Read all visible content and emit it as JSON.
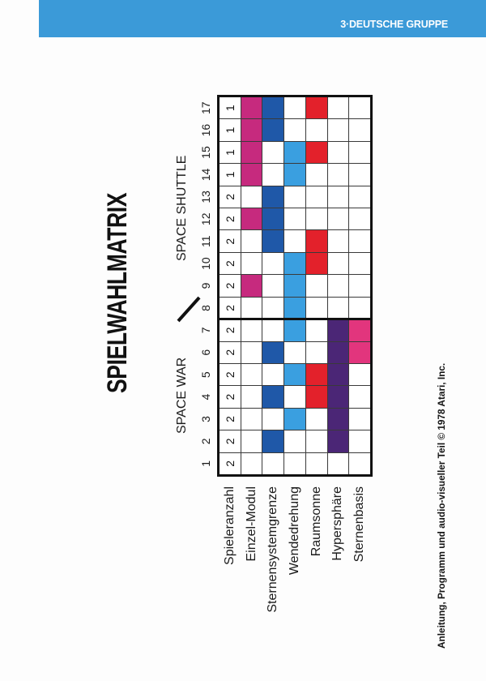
{
  "header": {
    "label": "3·DEUTSCHE GRUPPE",
    "band_color": "#3b9ad8"
  },
  "title": "SPIELWAHLMATRIX",
  "groups": {
    "space_war": "SPACE WAR",
    "space_shuttle": "SPACE SHUTTLE"
  },
  "matrix": {
    "columns": [
      "1",
      "2",
      "3",
      "4",
      "5",
      "6",
      "7",
      "8",
      "9",
      "10",
      "11",
      "12",
      "13",
      "14",
      "15",
      "16",
      "17"
    ],
    "rows": [
      {
        "label": "Spieleranzahl",
        "values": [
          "2",
          "2",
          "2",
          "2",
          "2",
          "2",
          "2",
          "2",
          "2",
          "2",
          "2",
          "2",
          "2",
          "1",
          "1",
          "1",
          "1"
        ]
      },
      {
        "label": "Einzel-Modul",
        "color": "#c62a7e",
        "marked": [
          9,
          12,
          14,
          15,
          16,
          17
        ]
      },
      {
        "label": "Sternensystemgrenze",
        "color": "#1f58a8",
        "marked": [
          2,
          4,
          6,
          11,
          12,
          13,
          16,
          17
        ]
      },
      {
        "label": "Wendedrehung",
        "color": "#3a9fe0",
        "marked": [
          3,
          5,
          7,
          8,
          9,
          10,
          14,
          15
        ]
      },
      {
        "label": "Raumsonne",
        "color": "#e3212b",
        "marked": [
          4,
          5,
          10,
          11,
          15,
          17
        ]
      },
      {
        "label": "Hypersphäre",
        "color": "#4b2676",
        "marked": [
          2,
          3,
          4,
          5,
          6,
          7
        ]
      },
      {
        "label": "Sternenbasis",
        "color": "#e2357d",
        "marked": [
          6,
          7
        ]
      }
    ]
  },
  "footer": "Anleitung, Programm und audio-visueller Teil © 1978 Atari, Inc."
}
